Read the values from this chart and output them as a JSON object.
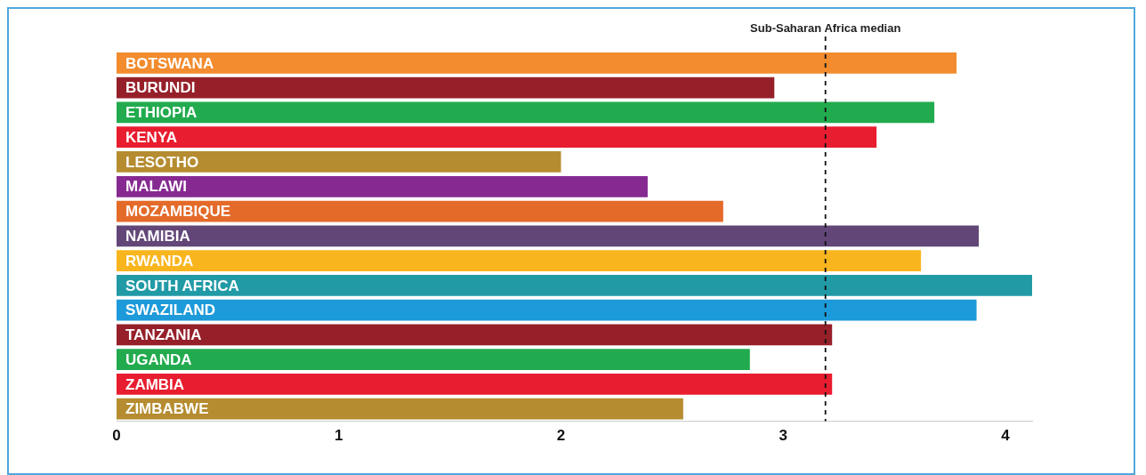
{
  "chart_data": {
    "type": "bar",
    "orientation": "horizontal",
    "categories": [
      "BOTSWANA",
      "BURUNDI",
      "ETHIOPIA",
      "KENYA",
      "LESOTHO",
      "MALAWI",
      "MOZAMBIQUE",
      "NAMIBIA",
      "RWANDA",
      "SOUTH AFRICA",
      "SWAZILAND",
      "TANZANIA",
      "UGANDA",
      "ZAMBIA",
      "ZIMBABWE"
    ],
    "values": [
      3.78,
      2.96,
      3.68,
      3.42,
      2.0,
      2.39,
      2.73,
      3.88,
      3.62,
      4.12,
      3.87,
      3.22,
      2.85,
      3.22,
      2.55
    ],
    "colors": [
      "#f28c2e",
      "#96202a",
      "#22ab4e",
      "#e81d2f",
      "#b58c30",
      "#862a91",
      "#e46a2a",
      "#624678",
      "#f9b51d",
      "#219aa6",
      "#1d9ad9",
      "#96202a",
      "#22ab4e",
      "#e81d2f",
      "#b58c30"
    ],
    "xlim": [
      0,
      4.12
    ],
    "xticks": [
      0,
      1,
      2,
      3,
      4
    ],
    "grid": false,
    "legend": false,
    "ref_lines": [
      {
        "axis": "x",
        "value": 3.19,
        "label": "Sub-Saharan Africa median",
        "line_style": "dashed"
      }
    ]
  }
}
